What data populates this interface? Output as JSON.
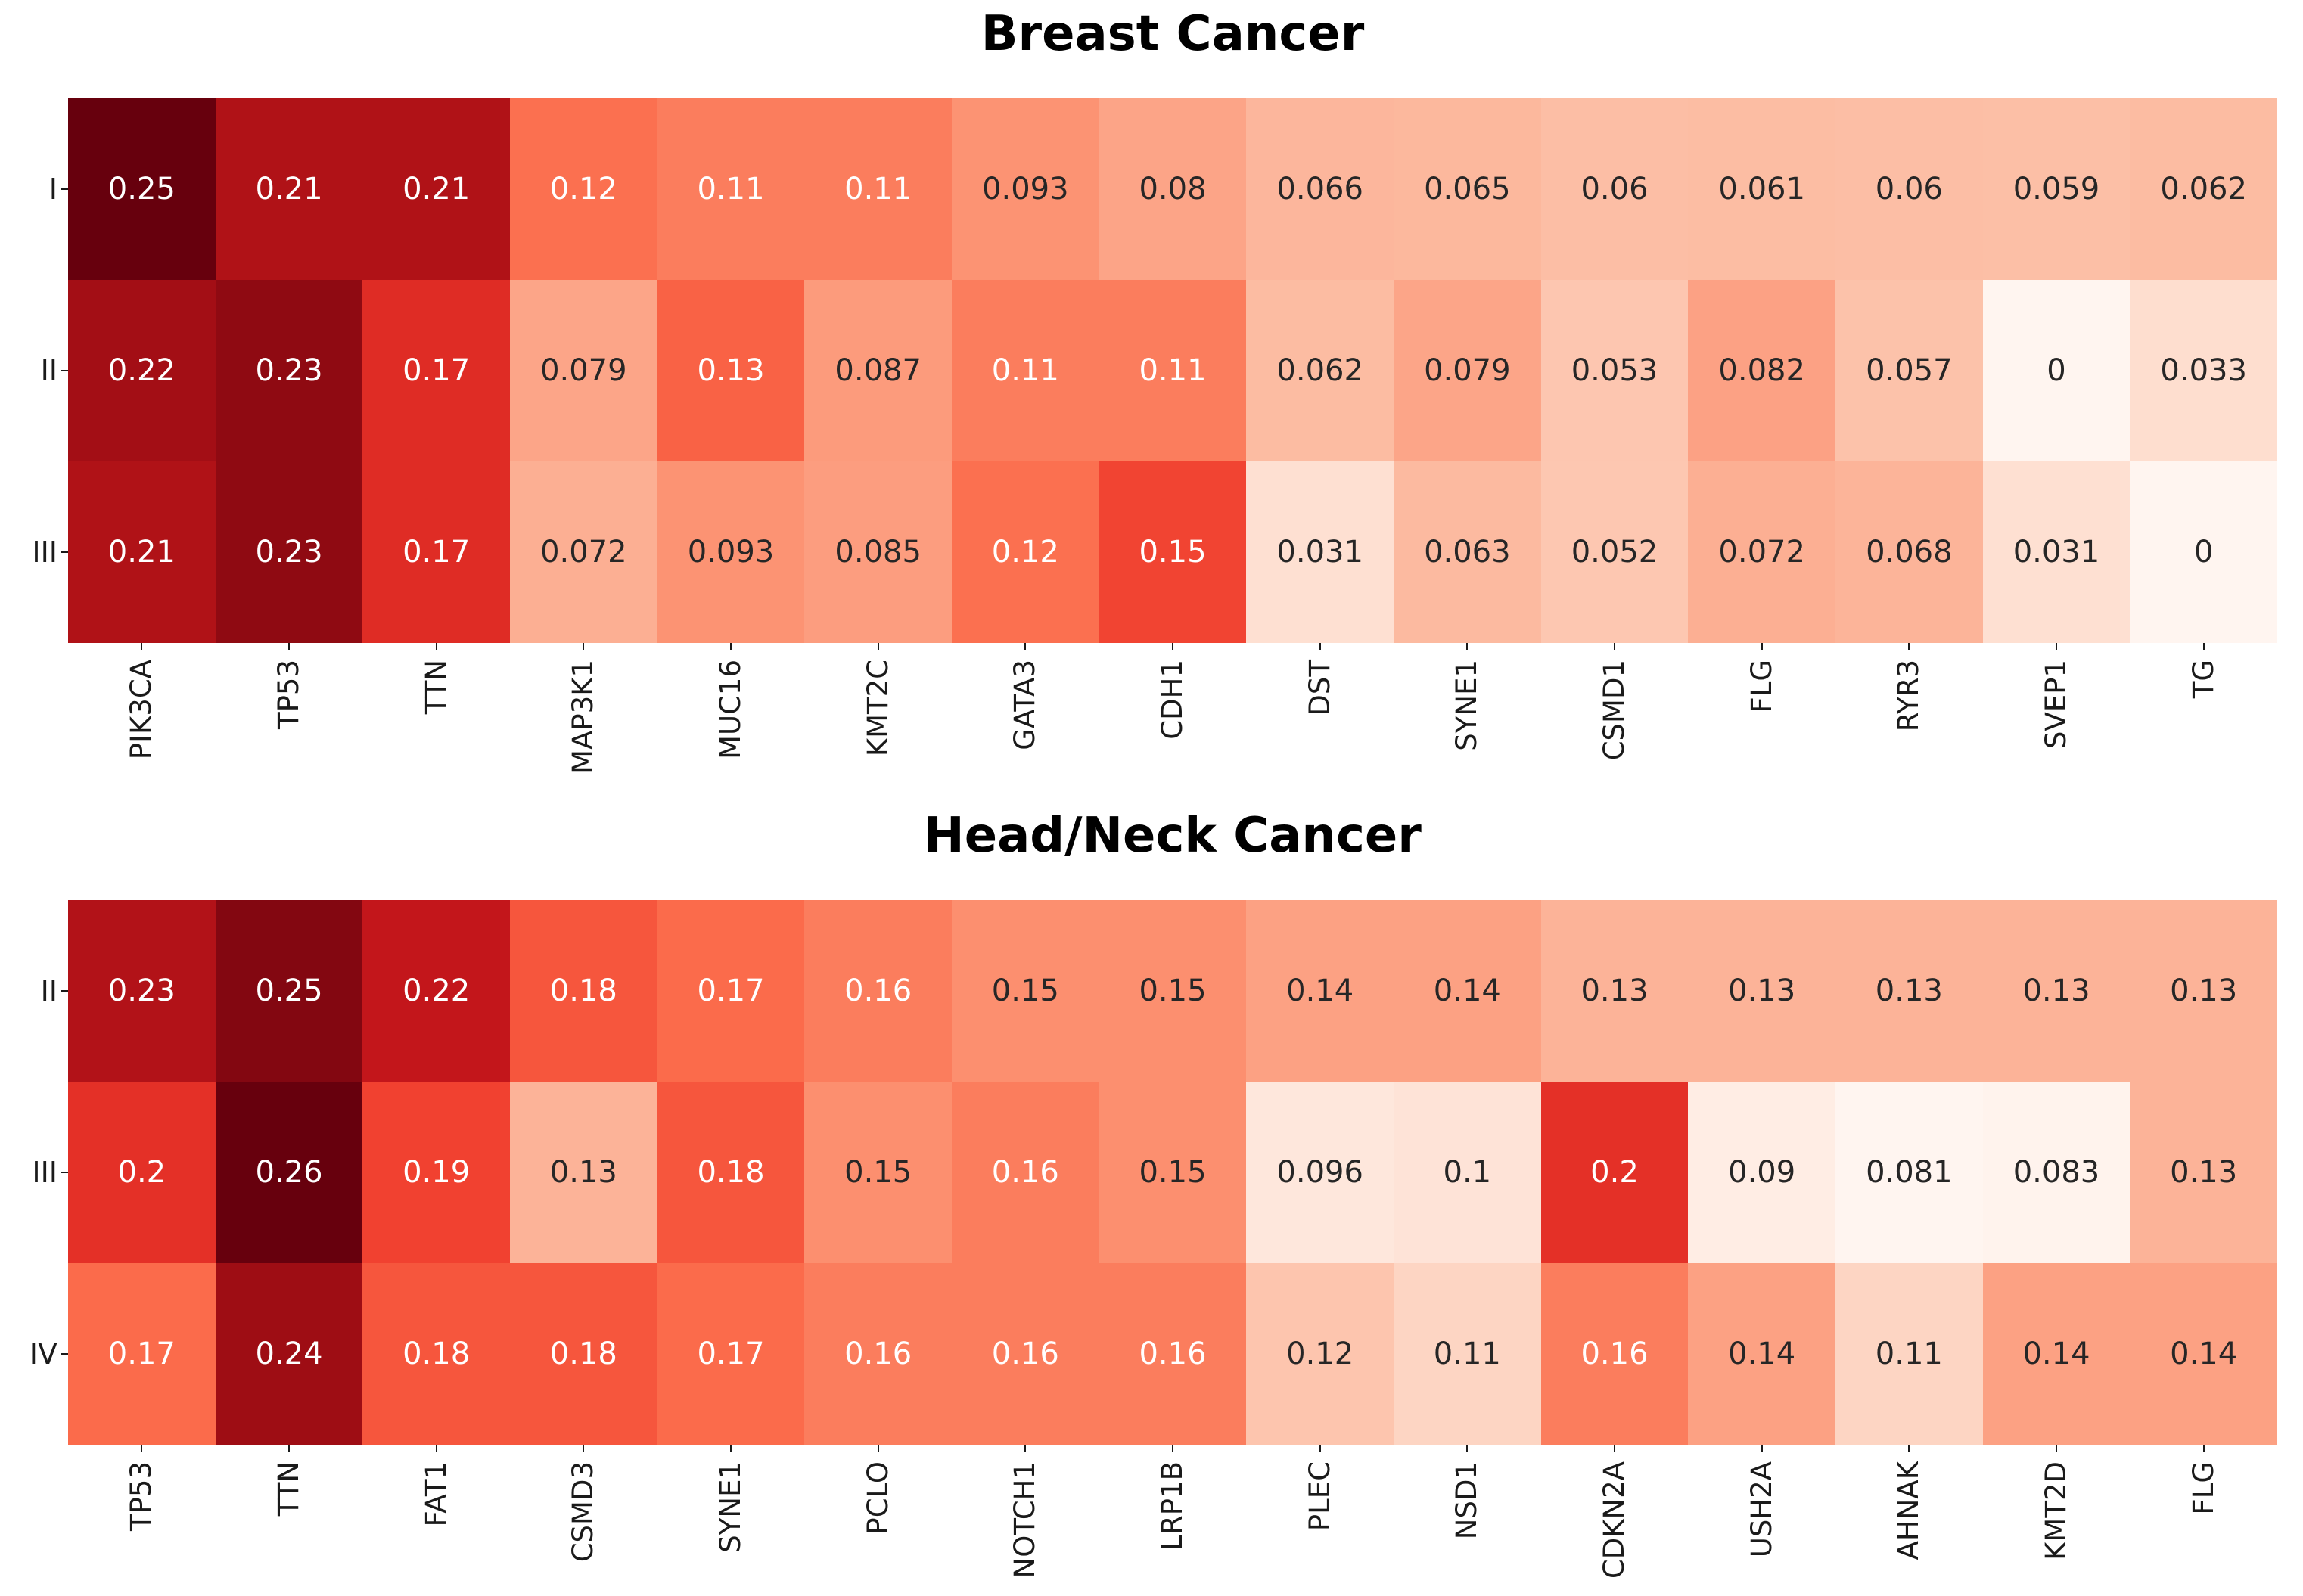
{
  "figure": {
    "background": "#ffffff",
    "colormap_name": "Reds",
    "annotation_dark_text_color": "#262626",
    "annotation_light_text_color": "#ffffff",
    "axis_label_color": "#1a1a1a"
  },
  "chart_data": [
    {
      "type": "heatmap",
      "title": "Breast Cancer",
      "rows": [
        "I",
        "II",
        "III"
      ],
      "columns": [
        "PIK3CA",
        "TP53",
        "TTN",
        "MAP3K1",
        "MUC16",
        "KMT2C",
        "GATA3",
        "CDH1",
        "DST",
        "SYNE1",
        "CSMD1",
        "FLG",
        "RYR3",
        "SVEP1",
        "TG"
      ],
      "values": [
        [
          0.25,
          0.21,
          0.21,
          0.12,
          0.11,
          0.11,
          0.093,
          0.08,
          0.066,
          0.065,
          0.06,
          0.061,
          0.06,
          0.059,
          0.062
        ],
        [
          0.22,
          0.23,
          0.17,
          0.079,
          0.13,
          0.087,
          0.11,
          0.11,
          0.062,
          0.079,
          0.053,
          0.082,
          0.057,
          0,
          0.033
        ],
        [
          0.21,
          0.23,
          0.17,
          0.072,
          0.093,
          0.085,
          0.12,
          0.15,
          0.031,
          0.063,
          0.052,
          0.072,
          0.068,
          0.031,
          0
        ]
      ],
      "labels": [
        [
          "0.25",
          "0.21",
          "0.21",
          "0.12",
          "0.11",
          "0.11",
          "0.093",
          "0.08",
          "0.066",
          "0.065",
          "0.06",
          "0.061",
          "0.06",
          "0.059",
          "0.062"
        ],
        [
          "0.22",
          "0.23",
          "0.17",
          "0.079",
          "0.13",
          "0.087",
          "0.11",
          "0.11",
          "0.062",
          "0.079",
          "0.053",
          "0.082",
          "0.057",
          "0",
          "0.033"
        ],
        [
          "0.21",
          "0.23",
          "0.17",
          "0.072",
          "0.093",
          "0.085",
          "0.12",
          "0.15",
          "0.031",
          "0.063",
          "0.052",
          "0.072",
          "0.068",
          "0.031",
          "0"
        ]
      ],
      "legend": "none",
      "grid": false
    },
    {
      "type": "heatmap",
      "title": "Head/Neck Cancer",
      "rows": [
        "II",
        "III",
        "IV"
      ],
      "columns": [
        "TP53",
        "TTN",
        "FAT1",
        "CSMD3",
        "SYNE1",
        "PCLO",
        "NOTCH1",
        "LRP1B",
        "PLEC",
        "NSD1",
        "CDKN2A",
        "USH2A",
        "AHNAK",
        "KMT2D",
        "FLG"
      ],
      "values": [
        [
          0.23,
          0.25,
          0.22,
          0.18,
          0.17,
          0.16,
          0.15,
          0.15,
          0.14,
          0.14,
          0.13,
          0.13,
          0.13,
          0.13,
          0.13
        ],
        [
          0.2,
          0.26,
          0.19,
          0.13,
          0.18,
          0.15,
          0.16,
          0.15,
          0.096,
          0.1,
          0.2,
          0.09,
          0.081,
          0.083,
          0.13
        ],
        [
          0.17,
          0.24,
          0.18,
          0.18,
          0.17,
          0.16,
          0.16,
          0.16,
          0.12,
          0.11,
          0.16,
          0.14,
          0.11,
          0.14,
          0.14
        ]
      ],
      "labels": [
        [
          "0.23",
          "0.25",
          "0.22",
          "0.18",
          "0.17",
          "0.16",
          "0.15",
          "0.15",
          "0.14",
          "0.14",
          "0.13",
          "0.13",
          "0.13",
          "0.13",
          "0.13"
        ],
        [
          "0.2",
          "0.26",
          "0.19",
          "0.13",
          "0.18",
          "0.15",
          "0.16",
          "0.15",
          "0.096",
          "0.1",
          "0.2",
          "0.09",
          "0.081",
          "0.083",
          "0.13"
        ],
        [
          "0.17",
          "0.24",
          "0.18",
          "0.18",
          "0.17",
          "0.16",
          "0.16",
          "0.16",
          "0.12",
          "0.11",
          "0.16",
          "0.14",
          "0.11",
          "0.14",
          "0.14"
        ]
      ],
      "legend": "none",
      "grid": false
    }
  ]
}
